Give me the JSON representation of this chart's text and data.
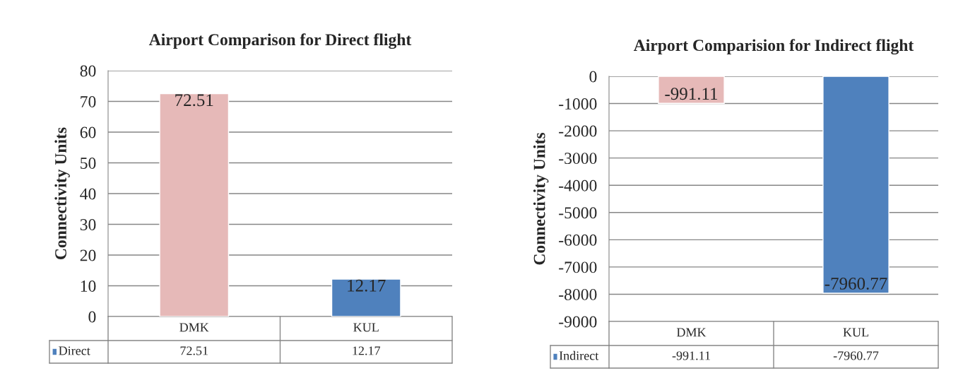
{
  "chart_data": [
    {
      "type": "bar",
      "title": "Airport Comparison for Direct flight",
      "ylabel": "Connectivity Units",
      "categories": [
        "DMK",
        "KUL"
      ],
      "series": [
        {
          "name": "Direct",
          "color": "#4f81bd",
          "colors": [
            "#e6b9b8",
            "#4f81bd"
          ],
          "values": [
            72.51,
            12.17
          ],
          "value_labels": [
            "72.51",
            "12.17"
          ]
        }
      ],
      "ylim": [
        0,
        80
      ],
      "yticks": [
        0,
        10,
        20,
        30,
        40,
        50,
        60,
        70,
        80
      ],
      "grid": "y",
      "legend": "bottom",
      "annotations": [
        "72.51",
        "12.17"
      ]
    },
    {
      "type": "bar",
      "title": "Airport Comparision for Indirect flight",
      "ylabel": "Connectivity Units",
      "categories": [
        "DMK",
        "KUL"
      ],
      "series": [
        {
          "name": "Indirect",
          "color": "#4f81bd",
          "colors": [
            "#e6b9b8",
            "#4f81bd"
          ],
          "values": [
            -991.11,
            -7960.77
          ],
          "value_labels": [
            "-991.11",
            "-7960.77"
          ]
        }
      ],
      "ylim": [
        -9000,
        0
      ],
      "yticks": [
        0,
        -1000,
        -2000,
        -3000,
        -4000,
        -5000,
        -6000,
        -7000,
        -8000,
        -9000
      ],
      "grid": "y",
      "legend": "bottom",
      "annotations": [
        "-991.11",
        "-7960.77"
      ]
    }
  ]
}
